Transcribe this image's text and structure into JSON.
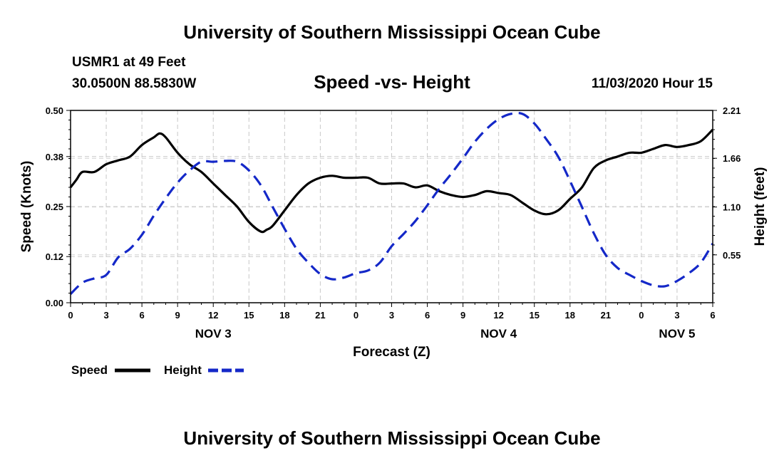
{
  "header": {
    "title": "University of Southern Mississippi Ocean Cube",
    "station": "USMR1 at 49 Feet",
    "coordinates": "30.0500N 88.5830W",
    "datetime": "11/03/2020 Hour 15"
  },
  "footer": {
    "title": "University of Southern Mississippi Ocean Cube"
  },
  "chart_data": {
    "type": "line",
    "title": "Speed -vs- Height",
    "xlabel": "Forecast (Z)",
    "ylabel": "Speed (Knots)",
    "y2label": "Height (feet)",
    "x_range": [
      0,
      54
    ],
    "ylim": [
      0,
      0.5
    ],
    "y2lim": [
      0,
      2.21
    ],
    "y_ticks": [
      "0.00",
      "0.12",
      "0.25",
      "0.38",
      "0.50"
    ],
    "y2_ticks": [
      "0.55",
      "1.10",
      "1.66",
      "2.21"
    ],
    "x_tick_labels": [
      "0",
      "3",
      "6",
      "9",
      "12",
      "15",
      "18",
      "21",
      "0",
      "3",
      "6",
      "9",
      "12",
      "15",
      "18",
      "21",
      "0",
      "3",
      "6"
    ],
    "day_labels": [
      {
        "label": "NOV 3",
        "hour": 12
      },
      {
        "label": "NOV 4",
        "hour": 36
      },
      {
        "label": "NOV 5",
        "hour": 51
      }
    ],
    "grid": true,
    "series": [
      {
        "name": "Speed",
        "axis": "left",
        "color": "#000000",
        "style": "solid",
        "x": [
          0,
          0.5,
          1,
          2,
          3,
          4,
          5,
          6,
          7,
          7.5,
          8,
          9,
          10,
          11,
          12,
          13,
          14,
          15,
          16,
          16.5,
          17,
          18,
          19,
          20,
          21,
          22,
          23,
          24,
          25,
          26,
          27,
          28,
          29,
          30,
          31,
          32,
          33,
          34,
          35,
          36,
          37,
          38,
          39,
          40,
          41,
          42,
          43,
          44,
          45,
          46,
          47,
          48,
          49,
          50,
          51,
          52,
          53,
          54
        ],
        "values": [
          0.3,
          0.32,
          0.34,
          0.34,
          0.36,
          0.37,
          0.38,
          0.41,
          0.43,
          0.44,
          0.43,
          0.39,
          0.36,
          0.34,
          0.31,
          0.28,
          0.25,
          0.21,
          0.185,
          0.19,
          0.2,
          0.24,
          0.28,
          0.31,
          0.325,
          0.33,
          0.325,
          0.325,
          0.325,
          0.31,
          0.31,
          0.31,
          0.3,
          0.305,
          0.29,
          0.28,
          0.275,
          0.28,
          0.29,
          0.285,
          0.28,
          0.26,
          0.24,
          0.23,
          0.24,
          0.27,
          0.3,
          0.35,
          0.37,
          0.38,
          0.39,
          0.39,
          0.4,
          0.41,
          0.405,
          0.41,
          0.42,
          0.45
        ]
      },
      {
        "name": "Height",
        "axis": "right",
        "color": "#1428c8",
        "style": "dashed",
        "x": [
          0,
          1,
          2,
          3,
          4,
          5,
          6,
          7,
          8,
          9,
          10,
          11,
          12,
          13,
          14,
          15,
          16,
          17,
          18,
          19,
          20,
          21,
          22,
          23,
          24,
          25,
          26,
          27,
          28,
          29,
          30,
          31,
          32,
          33,
          34,
          35,
          36,
          37,
          38,
          39,
          40,
          41,
          42,
          43,
          44,
          45,
          46,
          47,
          48,
          49,
          50,
          51,
          52,
          53,
          54
        ],
        "values": [
          0.1,
          0.23,
          0.28,
          0.32,
          0.52,
          0.62,
          0.78,
          1.0,
          1.2,
          1.38,
          1.52,
          1.62,
          1.62,
          1.63,
          1.62,
          1.52,
          1.35,
          1.1,
          0.85,
          0.62,
          0.46,
          0.33,
          0.27,
          0.29,
          0.34,
          0.37,
          0.46,
          0.65,
          0.79,
          0.94,
          1.12,
          1.31,
          1.48,
          1.66,
          1.85,
          2.0,
          2.11,
          2.17,
          2.17,
          2.06,
          1.88,
          1.68,
          1.4,
          1.1,
          0.8,
          0.55,
          0.4,
          0.32,
          0.25,
          0.2,
          0.19,
          0.25,
          0.34,
          0.46,
          0.68
        ]
      }
    ]
  }
}
